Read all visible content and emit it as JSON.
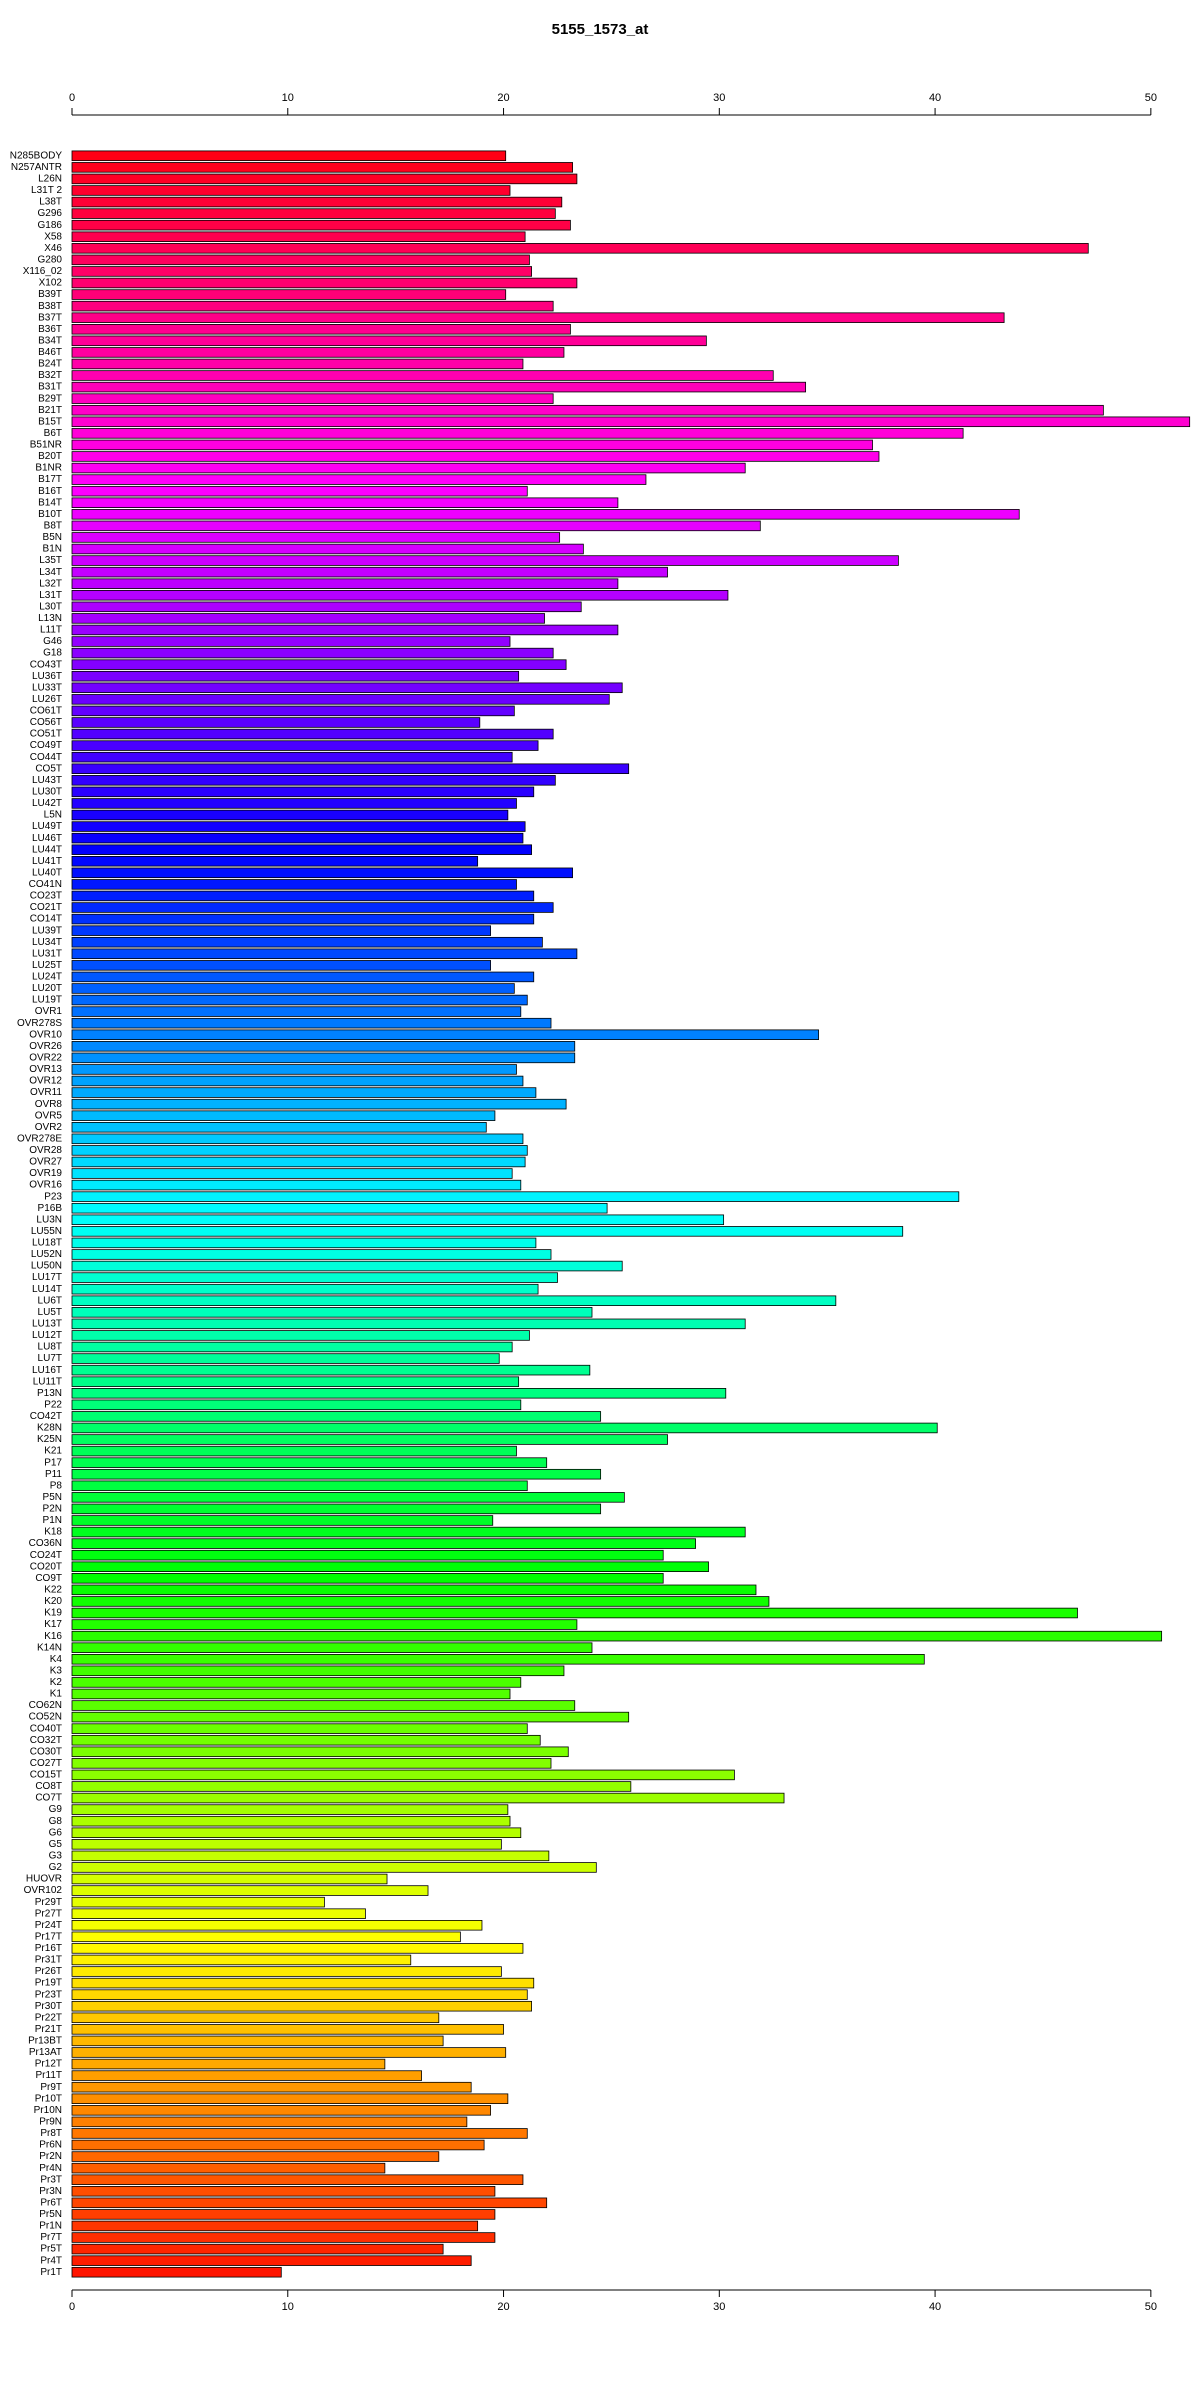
{
  "chart_data": {
    "type": "bar",
    "orientation": "horizontal",
    "title": "5155_1573_at",
    "categories": [
      "N285BODY",
      "N257ANTR",
      "L26N",
      "L31T 2",
      "L38T",
      "G296",
      "G186",
      "X58",
      "X46",
      "G280",
      "X116_02",
      "X102",
      "B39T",
      "B38T",
      "B37T",
      "B36T",
      "B34T",
      "B46T",
      "B24T",
      "B32T",
      "B31T",
      "B29T",
      "B21T",
      "B15T",
      "B6T",
      "B51NR",
      "B20T",
      "B1NR",
      "B17T",
      "B16T",
      "B14T",
      "B10T",
      "B8T",
      "B5N",
      "B1N",
      "L35T",
      "L34T",
      "L32T",
      "L31T",
      "L30T",
      "L13N",
      "L11T",
      "G46",
      "G18",
      "CO43T",
      "LU36T",
      "LU33T",
      "LU26T",
      "CO61T",
      "CO56T",
      "CO51T",
      "CO49T",
      "CO44T",
      "CO5T",
      "LU43T",
      "LU30T",
      "LU42T",
      "L5N",
      "LU49T",
      "LU46T",
      "LU44T",
      "LU41T",
      "LU40T",
      "CO41N",
      "CO23T",
      "CO21T",
      "CO14T",
      "LU39T",
      "LU34T",
      "LU31T",
      "LU25T",
      "LU24T",
      "LU20T",
      "LU19T",
      "OVR1",
      "OVR278S",
      "OVR10",
      "OVR26",
      "OVR22",
      "OVR13",
      "OVR12",
      "OVR11",
      "OVR8",
      "OVR5",
      "OVR2",
      "OVR278E",
      "OVR28",
      "OVR27",
      "OVR19",
      "OVR16",
      "P23",
      "P16B",
      "LU3N",
      "LU55N",
      "LU18T",
      "LU52N",
      "LU50N",
      "LU17T",
      "LU14T",
      "LU6T",
      "LU5T",
      "LU13T",
      "LU12T",
      "LU8T",
      "LU7T",
      "LU16T",
      "LU11T",
      "P13N",
      "P22",
      "CO42T",
      "K28N",
      "K25N",
      "K21",
      "P17",
      "P11",
      "P8",
      "P5N",
      "P2N",
      "P1N",
      "K18",
      "CO36N",
      "CO24T",
      "CO20T",
      "CO9T",
      "K22",
      "K20",
      "K19",
      "K17",
      "K16",
      "K14N",
      "K4",
      "K3",
      "K2",
      "K1",
      "CO62N",
      "CO52N",
      "CO40T",
      "CO32T",
      "CO30T",
      "CO27T",
      "CO15T",
      "CO8T",
      "CO7T",
      "G9",
      "G8",
      "G6",
      "G5",
      "G3",
      "G2",
      "HUOVR",
      "OVR102",
      "Pr29T",
      "Pr27T",
      "Pr24T",
      "Pr17T",
      "Pr16T",
      "Pr31T",
      "Pr26T",
      "Pr19T",
      "Pr23T",
      "Pr30T",
      "Pr22T",
      "Pr21T",
      "Pr13BT",
      "Pr13AT",
      "Pr12T",
      "Pr11T",
      "Pr9T",
      "Pr10T",
      "Pr10N",
      "Pr9N",
      "Pr8T",
      "Pr6N",
      "Pr2N",
      "Pr4N",
      "Pr3T",
      "Pr3N",
      "Pr6T",
      "Pr5N",
      "Pr1N",
      "Pr7T",
      "Pr5T",
      "Pr4T",
      "Pr1T"
    ],
    "values": [
      20.1,
      23.2,
      23.4,
      20.3,
      22.7,
      22.4,
      23.1,
      21.0,
      47.1,
      21.2,
      21.3,
      23.4,
      20.1,
      22.3,
      43.2,
      23.1,
      29.4,
      22.8,
      20.9,
      32.5,
      34.0,
      22.3,
      47.8,
      51.8,
      41.3,
      37.1,
      37.4,
      31.2,
      26.6,
      21.1,
      25.3,
      43.9,
      31.9,
      22.6,
      23.7,
      38.3,
      27.6,
      25.3,
      30.4,
      23.6,
      21.9,
      25.3,
      20.3,
      22.3,
      22.9,
      20.7,
      25.5,
      24.9,
      20.5,
      18.9,
      22.3,
      21.6,
      20.4,
      25.8,
      22.4,
      21.4,
      20.6,
      20.2,
      21.0,
      20.9,
      21.3,
      18.8,
      23.2,
      20.6,
      21.4,
      22.3,
      21.4,
      19.4,
      21.8,
      23.4,
      19.4,
      21.4,
      20.5,
      21.1,
      20.8,
      22.2,
      34.6,
      23.3,
      23.3,
      20.6,
      20.9,
      21.5,
      22.9,
      19.6,
      19.2,
      20.9,
      21.1,
      21.0,
      20.4,
      20.8,
      41.1,
      24.8,
      30.2,
      38.5,
      21.5,
      22.2,
      25.5,
      22.5,
      21.6,
      35.4,
      24.1,
      31.2,
      21.2,
      20.4,
      19.8,
      24.0,
      20.7,
      30.3,
      20.8,
      24.5,
      40.1,
      27.6,
      20.6,
      22.0,
      24.5,
      21.1,
      25.6,
      24.5,
      19.5,
      31.2,
      28.9,
      27.4,
      29.5,
      27.4,
      31.7,
      32.3,
      46.6,
      23.4,
      50.5,
      24.1,
      39.5,
      22.8,
      20.8,
      20.3,
      23.3,
      25.8,
      21.1,
      21.7,
      23.0,
      22.2,
      30.7,
      25.9,
      33.0,
      20.2,
      20.3,
      20.8,
      19.9,
      22.1,
      24.3,
      14.6,
      16.5,
      11.7,
      13.6,
      19.0,
      18.0,
      20.9,
      15.7,
      19.9,
      21.4,
      21.1,
      21.3,
      17.0,
      20.0,
      17.2,
      20.1,
      14.5,
      16.2,
      18.5,
      20.2,
      19.4,
      18.3,
      21.1,
      19.1,
      17.0,
      14.5,
      20.9,
      19.6,
      22.0,
      19.6,
      18.8,
      19.6,
      17.2,
      18.5,
      9.7
    ],
    "xlim": [
      0,
      52
    ],
    "xticks": [
      0,
      10,
      20,
      30,
      40,
      50
    ]
  }
}
